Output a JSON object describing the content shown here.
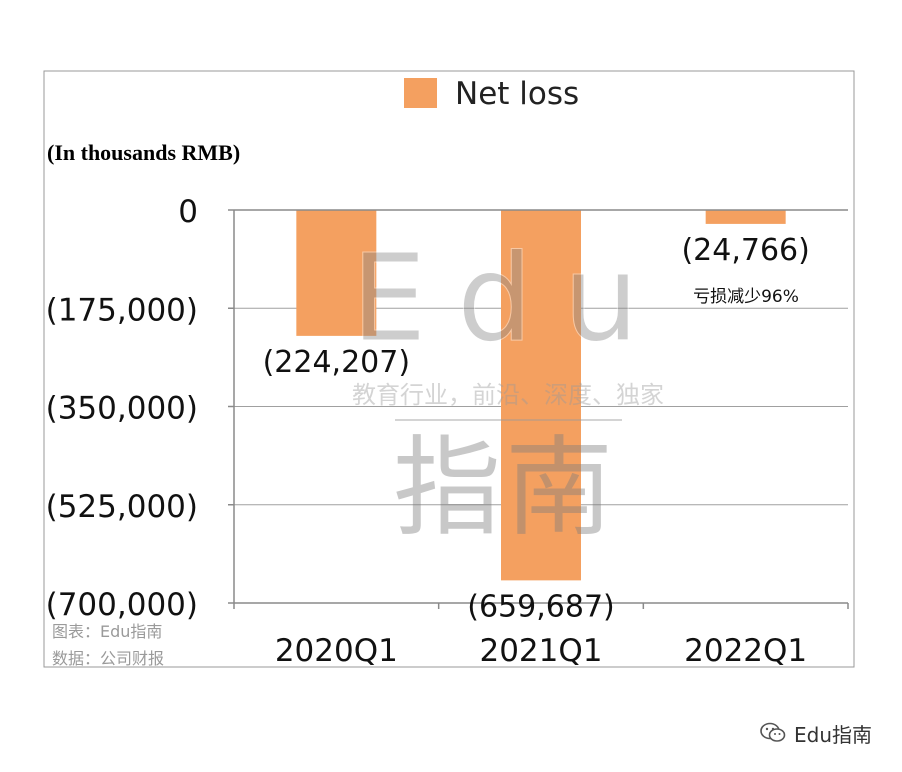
{
  "chart_data": {
    "type": "bar",
    "title": "",
    "legend": [
      {
        "name": "Net loss",
        "color": "#F4A060"
      }
    ],
    "legend_placement": "top-center",
    "unit_label": "(In thousands RMB)",
    "categories": [
      "2020Q1",
      "2021Q1",
      "2022Q1"
    ],
    "series": [
      {
        "name": "Net loss",
        "values": [
          -224207,
          -659687,
          -24766
        ]
      }
    ],
    "data_labels": [
      "(224,207)",
      "(659,687)",
      "(24,766)"
    ],
    "y_ticks": [
      0,
      -175000,
      -350000,
      -525000,
      -700000
    ],
    "y_tick_labels": [
      "0",
      "(175,000)",
      "(350,000)",
      "(525,000)",
      "(700,000)"
    ],
    "ylim": [
      -700000,
      0
    ],
    "grid": true,
    "annotation": "亏损减少96%",
    "bar_color": "#F4A060"
  },
  "watermark": {
    "title": "Edu",
    "subtitle": "教育行业，前沿、深度、独家",
    "cn": "指南"
  },
  "credits": {
    "chart_source": "图表：Edu指南",
    "data_source": "数据：公司财报"
  },
  "footer": {
    "brand": "Edu指南"
  }
}
